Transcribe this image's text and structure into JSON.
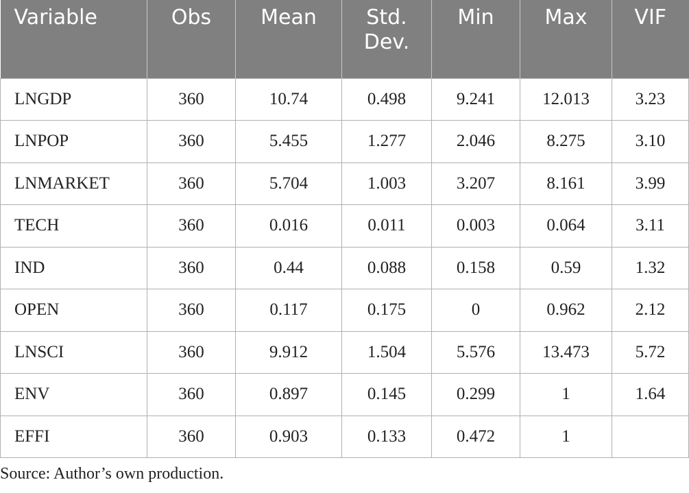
{
  "table": {
    "headers": [
      "Variable",
      "Obs",
      "Mean",
      "Std.\nDev.",
      "Min",
      "Max",
      "VIF"
    ],
    "rows": [
      [
        "LNGDP",
        "360",
        "10.74",
        "0.498",
        "9.241",
        "12.013",
        "3.23"
      ],
      [
        "LNPOP",
        "360",
        "5.455",
        "1.277",
        "2.046",
        "8.275",
        "3.10"
      ],
      [
        "LNMARKET",
        "360",
        "5.704",
        "1.003",
        "3.207",
        "8.161",
        "3.99"
      ],
      [
        "TECH",
        "360",
        "0.016",
        "0.011",
        "0.003",
        "0.064",
        "3.11"
      ],
      [
        "IND",
        "360",
        "0.44",
        "0.088",
        "0.158",
        "0.59",
        "1.32"
      ],
      [
        "OPEN",
        "360",
        "0.117",
        "0.175",
        "0",
        "0.962",
        "2.12"
      ],
      [
        "LNSCI",
        "360",
        "9.912",
        "1.504",
        "5.576",
        "13.473",
        "5.72"
      ],
      [
        "ENV",
        "360",
        "0.897",
        "0.145",
        "0.299",
        "1",
        "1.64"
      ],
      [
        "EFFI",
        "360",
        "0.903",
        "0.133",
        "0.472",
        "1",
        ""
      ]
    ]
  },
  "footer": {
    "source": "Source: Author’s own production."
  }
}
